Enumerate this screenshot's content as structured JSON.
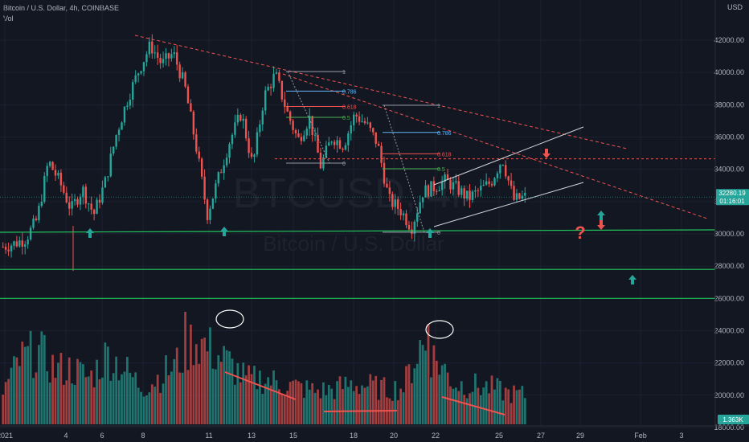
{
  "header": {
    "symbol_line": "Bitcoin / U.S. Dollar, 4h, COINBASE",
    "volume_label": "Vol",
    "currency": "USD"
  },
  "watermark": {
    "ticker": "BTCUSD, 4h",
    "name": "Bitcoin / U.S. Dollar"
  },
  "price_badge": {
    "price": "32280.19",
    "countdown": "01:16:01"
  },
  "volume_badge": "1.363K",
  "colors": {
    "background": "#131722",
    "up": "#26a69a",
    "down": "#ef5350",
    "support": "#22c55e",
    "resistance": "#ef5350",
    "channel": "#d1d4dc",
    "arrow_up": "#26a69a",
    "arrow_down": "#ef5350"
  },
  "chart_data": {
    "type": "candlestick",
    "symbol": "BTCUSD",
    "interval": "4h",
    "x_tick_labels": [
      "2021",
      "4",
      "6",
      "8",
      "11",
      "13",
      "15",
      "18",
      "20",
      "22",
      "25",
      "27",
      "29",
      "Feb",
      "3"
    ],
    "price_ticks": [
      "42000.00",
      "40000.00",
      "38000.00",
      "36000.00",
      "34000.00",
      "32000.00",
      "30000.00",
      "28000.00",
      "26000.00",
      "24000.00",
      "22000.00",
      "20000.00",
      "18000.00"
    ],
    "price_path": [
      29200,
      29400,
      29700,
      30900,
      34500,
      33200,
      31500,
      32800,
      31200,
      33200,
      36200,
      38400,
      40200,
      41700,
      40500,
      41200,
      39200,
      35500,
      31200,
      33500,
      35800,
      37500,
      34200,
      38500,
      39900,
      37600,
      35800,
      37200,
      34200,
      36000,
      35500,
      37400,
      36800,
      35600,
      32100,
      31500,
      30400,
      32600,
      32900,
      33300,
      32800,
      32200,
      32700,
      33200,
      34700,
      32100,
      32280
    ],
    "volume_path": [
      9000,
      17500,
      20000,
      15000,
      15000,
      12500,
      19000,
      15000,
      10000,
      13000,
      16500,
      23500,
      20000,
      16500,
      12000,
      12500,
      11000,
      10000,
      9000,
      9500,
      11000,
      10500,
      9500,
      10000,
      21500,
      17000,
      11000,
      10500,
      10000,
      8500,
      8000
    ],
    "support_levels": [
      {
        "price": 30100,
        "label": ""
      },
      {
        "price": 27800,
        "label": ""
      },
      {
        "price": 26000,
        "label": ""
      }
    ],
    "resistance_level": 34650,
    "fibonacci": [
      {
        "levels": [
          "1",
          "0.786",
          "0.618",
          "0.5",
          "0"
        ]
      },
      {
        "levels": [
          "1",
          "0.786",
          "0.618",
          "0.5",
          "0"
        ]
      }
    ],
    "annotations": [
      "?"
    ],
    "ylim": [
      17000,
      43200
    ]
  }
}
